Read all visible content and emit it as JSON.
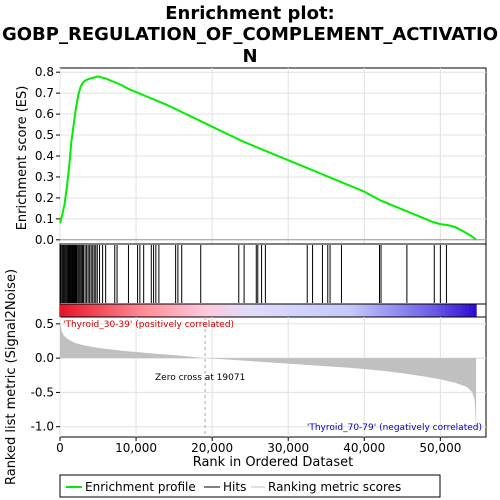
{
  "chart_data": {
    "type": "line",
    "title_line1": "Enrichment plot:",
    "title_line2": "GOBP_REGULATION_OF_COMPLEMENT_ACTIVATIO",
    "title_line3": "N",
    "es_ylabel": "Enrichment score (ES)",
    "es_ylim": [
      -0.02,
      0.82
    ],
    "es_yticks": [
      "0.0",
      "0.1",
      "0.2",
      "0.3",
      "0.4",
      "0.5",
      "0.6",
      "0.7",
      "0.8"
    ],
    "es_ytick_values": [
      0.0,
      0.1,
      0.2,
      0.3,
      0.4,
      0.5,
      0.6,
      0.7,
      0.8
    ],
    "xlim": [
      0,
      56000
    ],
    "es_curve": {
      "x": [
        0,
        300,
        600,
        900,
        1200,
        1500,
        1800,
        2100,
        2400,
        2700,
        3000,
        3300,
        3600,
        4000,
        4500,
        5000,
        5500,
        6000,
        7000,
        8000,
        9000,
        10000,
        11000,
        12000,
        13000,
        14000,
        16000,
        18000,
        20000,
        22000,
        24000,
        26000,
        28000,
        30000,
        32000,
        34000,
        36000,
        38000,
        40000,
        42000,
        44000,
        46000,
        48000,
        49000,
        50000,
        51000,
        52000,
        53000,
        54000,
        54700
      ],
      "y": [
        0.08,
        0.12,
        0.17,
        0.25,
        0.35,
        0.47,
        0.55,
        0.63,
        0.69,
        0.73,
        0.75,
        0.76,
        0.765,
        0.77,
        0.775,
        0.78,
        0.775,
        0.77,
        0.755,
        0.74,
        0.72,
        0.705,
        0.69,
        0.675,
        0.66,
        0.645,
        0.61,
        0.575,
        0.54,
        0.505,
        0.47,
        0.44,
        0.41,
        0.38,
        0.35,
        0.32,
        0.29,
        0.26,
        0.23,
        0.19,
        0.16,
        0.13,
        0.1,
        0.085,
        0.075,
        0.07,
        0.06,
        0.04,
        0.02,
        0.0
      ]
    },
    "hits": [
      100,
      250,
      380,
      500,
      620,
      750,
      880,
      1000,
      1100,
      1200,
      1300,
      1400,
      1500,
      1600,
      1700,
      1800,
      1900,
      2000,
      2100,
      2200,
      2350,
      2500,
      2650,
      2800,
      2950,
      3100,
      3300,
      3500,
      3700,
      3900,
      4100,
      4300,
      4500,
      4700,
      4900,
      5200,
      5600,
      6000,
      7200,
      7500,
      9000,
      10200,
      10500,
      11000,
      12000,
      12300,
      12600,
      13000,
      15200,
      15500,
      16000,
      18500,
      23500,
      24200,
      25800,
      26000,
      26500,
      27000,
      32500,
      33200,
      34500,
      35200,
      35500,
      37000,
      42000,
      42200,
      45600,
      49200,
      50000,
      50800
    ],
    "metric_ylabel": "Ranked list metric (Signal2Noise)",
    "metric_ylim": [
      -1.15,
      0.6
    ],
    "metric_yticks": [
      "0.5",
      "0.0",
      "-0.5",
      "-1.0"
    ],
    "metric_ytick_values": [
      0.5,
      0.0,
      -0.5,
      -1.0
    ],
    "metric_curve": {
      "x": [
        0,
        200,
        500,
        1000,
        2000,
        3000,
        5000,
        8000,
        12000,
        16000,
        19071,
        22000,
        26000,
        30000,
        34000,
        38000,
        42000,
        45000,
        48000,
        50000,
        52000,
        53500,
        54200,
        54500,
        54600,
        54700
      ],
      "y": [
        0.55,
        0.4,
        0.33,
        0.28,
        0.22,
        0.19,
        0.15,
        0.11,
        0.07,
        0.035,
        0.0,
        -0.02,
        -0.05,
        -0.08,
        -0.11,
        -0.14,
        -0.18,
        -0.22,
        -0.27,
        -0.31,
        -0.36,
        -0.42,
        -0.5,
        -0.6,
        -0.8,
        -1.13
      ]
    },
    "zero_cross_x": 19071,
    "zero_cross_label": "Zero cross at 19071",
    "positive_label": "'Thyroid_30-39' (positively correlated)",
    "negative_label": "'Thyroid_70-79' (negatively correlated)",
    "xlabel": "Rank in Ordered Dataset",
    "xticks": [
      "0",
      "10,000",
      "20,000",
      "30,000",
      "40,000",
      "50,000"
    ],
    "xtick_values": [
      0,
      10000,
      20000,
      30000,
      40000,
      50000
    ],
    "legend": {
      "items": [
        {
          "label": "Enrichment profile",
          "color": "#00ee00"
        },
        {
          "label": "Hits",
          "color": "#000000"
        },
        {
          "label": "Ranking metric scores",
          "color": "#c0c0c0"
        }
      ],
      "placement": "bottom"
    },
    "colors": {
      "es_line": "#00ee00",
      "hit": "#000000",
      "metric_fill": "#c0c0c0",
      "grid": "#e0e0e0"
    },
    "grid": true
  }
}
